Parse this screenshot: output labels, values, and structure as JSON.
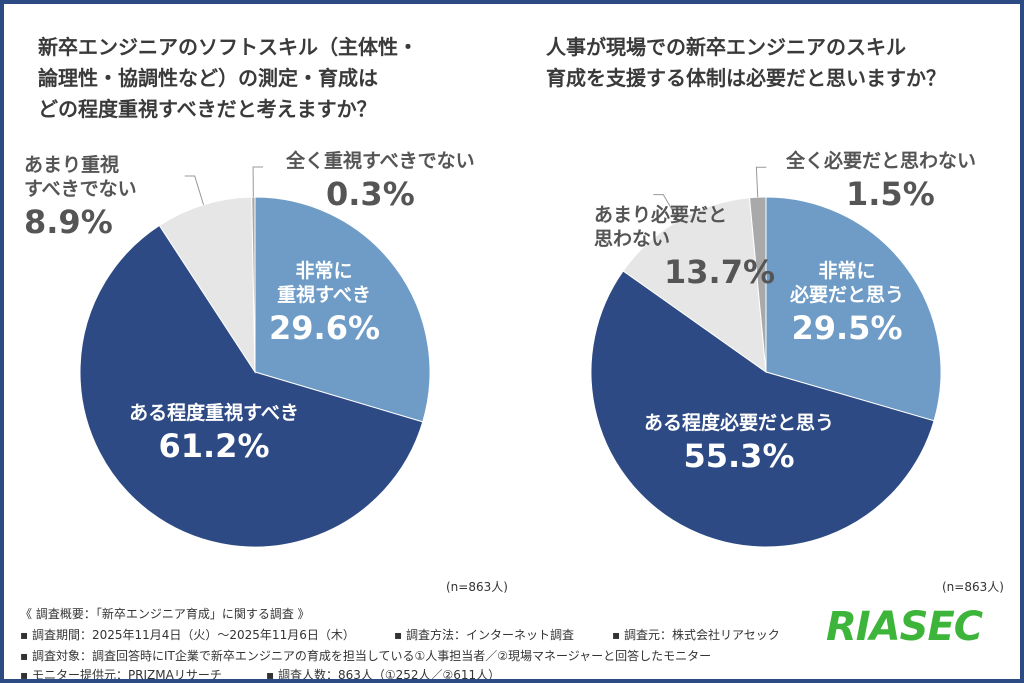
{
  "colors": {
    "very": "#6f9cc6",
    "somewhat": "#2d4a85",
    "notmuch": "#e6e6e6",
    "notatall": "#a9a9a9",
    "frame": "#2c4a83",
    "logo": "#3db43a"
  },
  "chart_data": [
    {
      "type": "pie",
      "title": "新卒エンジニアのソフトスキル（主体性・\n論理性・協調性など）の測定・育成は\nどの程度重視すべきだと考えますか？",
      "slices": [
        {
          "label": "非常に\n重視すべき",
          "value": 29.6,
          "display": "29.6%"
        },
        {
          "label": "ある程度重視すべき",
          "value": 61.2,
          "display": "61.2%"
        },
        {
          "label": "あまり重視\nすべきでない",
          "value": 8.9,
          "display": "8.9%"
        },
        {
          "label": "全く重視すべきでない",
          "value": 0.3,
          "display": "0.3%"
        }
      ],
      "note": "(n=863人)"
    },
    {
      "type": "pie",
      "title": "人事が現場での新卒エンジニアのスキル\n育成を支援する体制は必要だと思いますか？",
      "slices": [
        {
          "label": "非常に\n必要だと思う",
          "value": 29.5,
          "display": "29.5%"
        },
        {
          "label": "ある程度必要だと思う",
          "value": 55.3,
          "display": "55.3%"
        },
        {
          "label": "あまり必要だと\n思わない",
          "value": 13.7,
          "display": "13.7%"
        },
        {
          "label": "全く必要だと思わない",
          "value": 1.5,
          "display": "1.5%"
        }
      ],
      "note": "(n=863人)"
    }
  ],
  "footer": {
    "heading": "《 調査概要：「新卒エンジニア育成」に関する調査 》",
    "period": "▪ 調査期間：2025年11月4日（火）～2025年11月6日（木）",
    "method": "▪ 調査方法：インターネット調査",
    "source": "▪ 調査元：株式会社リアセック",
    "target": "▪ 調査対象：調査回答時にIT企業で新卒エンジニアの育成を担当している①人事担当者／②現場マネージャーと回答したモニター",
    "provider": "▪ モニター提供元：PRIZMAリサーチ",
    "count": "▪ 調査人数：863人（①252人／②611人）"
  },
  "logo": "RIASEC"
}
